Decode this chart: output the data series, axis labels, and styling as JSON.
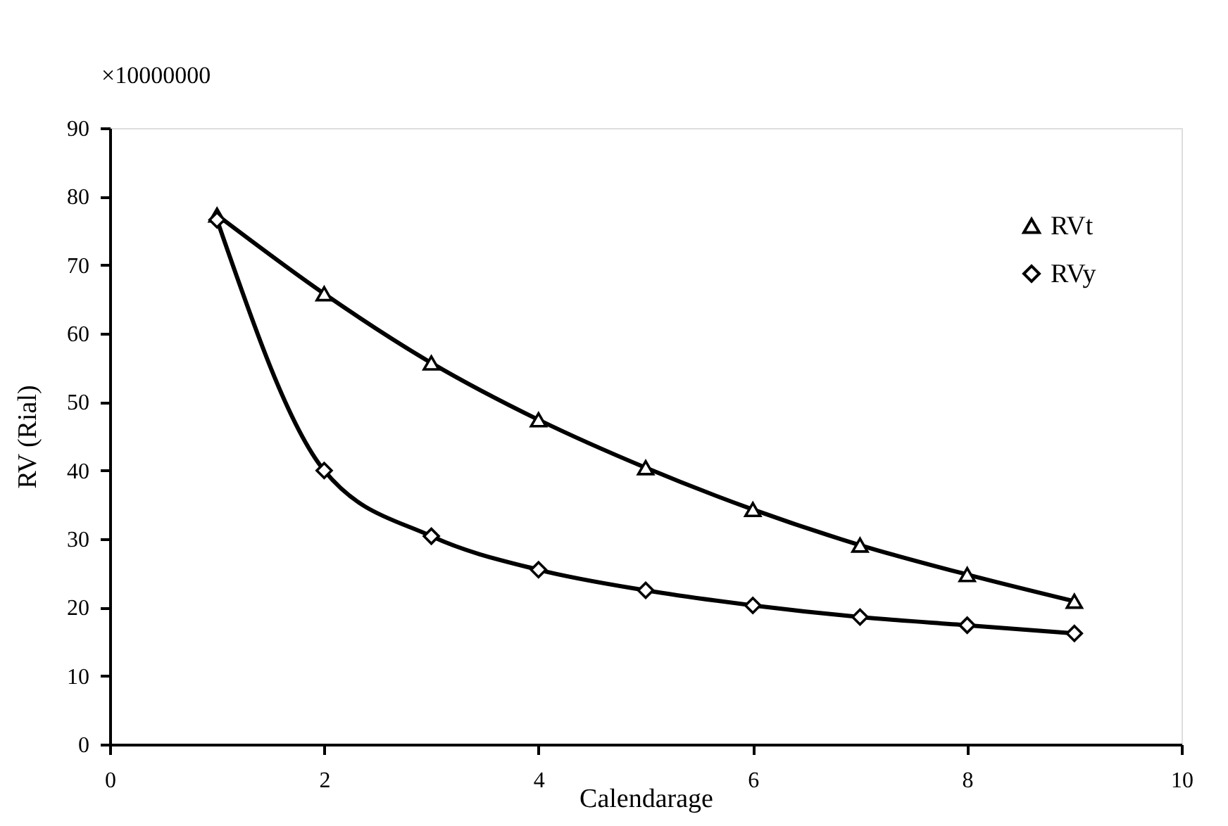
{
  "chart_data": {
    "type": "line",
    "xlabel": "Calendarage",
    "ylabel": "RV (Rial)",
    "annotations": [
      "×10000000"
    ],
    "x": [
      1,
      2,
      3,
      4,
      5,
      6,
      7,
      8,
      9
    ],
    "series": [
      {
        "name": "RVt",
        "color": "#000000",
        "marker": "triangle",
        "values": [
          77.3,
          65.8,
          55.7,
          47.4,
          40.4,
          34.3,
          29.1,
          24.8,
          20.9
        ]
      },
      {
        "name": "RVy",
        "color": "#000000",
        "marker": "diamond",
        "values": [
          76.6,
          40.0,
          30.4,
          25.5,
          22.5,
          20.3,
          18.6,
          17.4,
          16.2
        ]
      }
    ],
    "xlim": [
      0,
      10
    ],
    "xticks": [
      0,
      2,
      4,
      6,
      8,
      10
    ],
    "ylim": [
      0,
      90
    ],
    "yticks": [
      0,
      10,
      20,
      30,
      40,
      50,
      60,
      70,
      80,
      90
    ],
    "grid": false,
    "legend": "top right",
    "line_style": "solid"
  }
}
